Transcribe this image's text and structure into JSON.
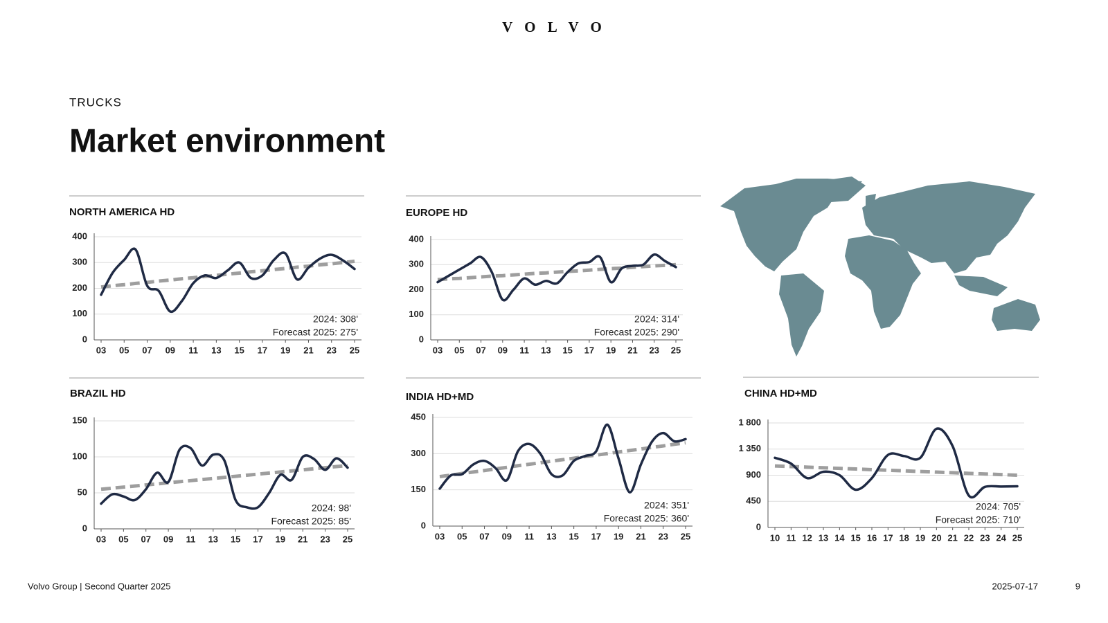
{
  "header": {
    "brand": "V O L V O",
    "section": "TRUCKS",
    "title": "Market environment"
  },
  "footer": {
    "left": "Volvo Group | Second Quarter 2025",
    "date": "2025-07-17",
    "page": "9"
  },
  "chart_data": [
    {
      "type": "line",
      "title": "NORTH AMERICA HD",
      "categories": [
        "03",
        null,
        "05",
        null,
        "07",
        null,
        "09",
        null,
        "11",
        null,
        "13",
        null,
        "15",
        null,
        "17",
        null,
        "19",
        null,
        "21",
        null,
        "23",
        null,
        "25"
      ],
      "series": [
        {
          "color": "#1f2a44",
          "values": [
            175,
            260,
            310,
            350,
            210,
            190,
            110,
            150,
            220,
            250,
            240,
            270,
            300,
            240,
            250,
            310,
            335,
            235,
            280,
            315,
            330,
            308,
            275
          ]
        },
        {
          "color": "#9e9e9e",
          "dashed": true,
          "values": [
            205,
            210,
            214,
            219,
            223,
            228,
            232,
            237,
            241,
            246,
            250,
            255,
            259,
            264,
            268,
            273,
            277,
            282,
            286,
            291,
            295,
            300,
            305
          ]
        }
      ],
      "ylim": [
        0,
        400
      ],
      "yticks": [
        0,
        100,
        200,
        300,
        400
      ],
      "grid": true,
      "annotations": [
        "2024: 308'",
        "Forecast 2025: 275'"
      ]
    },
    {
      "type": "line",
      "title": "EUROPE HD",
      "categories": [
        "03",
        null,
        "05",
        null,
        "07",
        null,
        "09",
        null,
        "11",
        null,
        "13",
        null,
        "15",
        null,
        "17",
        null,
        "19",
        null,
        "21",
        null,
        "23",
        null,
        "25"
      ],
      "series": [
        {
          "color": "#1f2a44",
          "values": [
            230,
            255,
            280,
            305,
            330,
            270,
            160,
            200,
            245,
            220,
            235,
            225,
            270,
            305,
            310,
            330,
            230,
            285,
            295,
            300,
            340,
            314,
            290
          ]
        },
        {
          "color": "#9e9e9e",
          "dashed": true,
          "values": [
            240,
            243,
            245,
            248,
            251,
            254,
            256,
            259,
            262,
            265,
            267,
            270,
            273,
            275,
            278,
            281,
            284,
            286,
            289,
            292,
            295,
            297,
            300
          ]
        }
      ],
      "ylim": [
        0,
        400
      ],
      "yticks": [
        0,
        100,
        200,
        300,
        400
      ],
      "grid": true,
      "annotations": [
        "2024: 314'",
        "Forecast 2025:  290'"
      ]
    },
    {
      "type": "line",
      "title": "BRAZIL HD",
      "categories": [
        "03",
        null,
        "05",
        null,
        "07",
        null,
        "09",
        null,
        "11",
        null,
        "13",
        null,
        "15",
        null,
        "17",
        null,
        "19",
        null,
        "21",
        null,
        "23",
        null,
        "25"
      ],
      "series": [
        {
          "color": "#1f2a44",
          "values": [
            35,
            48,
            45,
            40,
            55,
            78,
            65,
            110,
            112,
            88,
            103,
            95,
            40,
            30,
            30,
            50,
            75,
            68,
            100,
            97,
            82,
            98,
            85
          ]
        },
        {
          "color": "#9e9e9e",
          "dashed": true,
          "values": [
            55,
            56.5,
            58,
            59.5,
            61,
            62.5,
            64,
            65.5,
            67,
            68.5,
            70,
            71.5,
            73,
            74.5,
            76,
            77.5,
            79,
            80.5,
            82,
            83.5,
            85,
            86.5,
            88
          ]
        }
      ],
      "ylim": [
        0,
        150
      ],
      "yticks": [
        0,
        50,
        100,
        150
      ],
      "grid": true,
      "annotations": [
        "2024: 98'",
        "Forecast 2025: 85'"
      ]
    },
    {
      "type": "line",
      "title": "INDIA HD+MD",
      "categories": [
        "03",
        null,
        "05",
        null,
        "07",
        null,
        "09",
        null,
        "11",
        null,
        "13",
        null,
        "15",
        null,
        "17",
        null,
        "19",
        null,
        "21",
        null,
        "23",
        null,
        "25"
      ],
      "series": [
        {
          "color": "#1f2a44",
          "values": [
            155,
            210,
            215,
            255,
            270,
            240,
            190,
            310,
            340,
            300,
            215,
            210,
            270,
            290,
            310,
            420,
            280,
            140,
            255,
            350,
            385,
            351,
            360
          ]
        },
        {
          "color": "#9e9e9e",
          "dashed": true,
          "values": [
            205,
            211,
            218,
            224,
            230,
            237,
            243,
            250,
            256,
            262,
            269,
            275,
            281,
            288,
            294,
            300,
            307,
            313,
            319,
            326,
            332,
            339,
            345
          ]
        }
      ],
      "ylim": [
        0,
        450
      ],
      "yticks": [
        0,
        150,
        300,
        450
      ],
      "grid": true,
      "annotations": [
        "2024: 351'",
        "Forecast 2025: 360'"
      ]
    },
    {
      "type": "line",
      "title": "CHINA HD+MD",
      "categories": [
        "10",
        "11",
        "12",
        "13",
        "14",
        "15",
        "16",
        "17",
        "18",
        "19",
        "20",
        "21",
        "22",
        "23",
        "24",
        "25"
      ],
      "series": [
        {
          "color": "#1f2a44",
          "values": [
            1200,
            1100,
            850,
            960,
            900,
            650,
            850,
            1250,
            1230,
            1200,
            1700,
            1400,
            550,
            700,
            705,
            710
          ]
        },
        {
          "color": "#9e9e9e",
          "dashed": true,
          "values": [
            1060,
            1049,
            1039,
            1028,
            1017,
            1007,
            996,
            985,
            975,
            964,
            953,
            943,
            932,
            921,
            911,
            900
          ]
        }
      ],
      "ylim": [
        0,
        1800
      ],
      "yticks": [
        0,
        450,
        900,
        {
          "value": 1350,
          "label": "1 350"
        },
        {
          "value": 1800,
          "label": "1 800"
        }
      ],
      "grid": true,
      "annotations": [
        "2024: 705'",
        "Forecast 2025: 710'"
      ]
    }
  ]
}
